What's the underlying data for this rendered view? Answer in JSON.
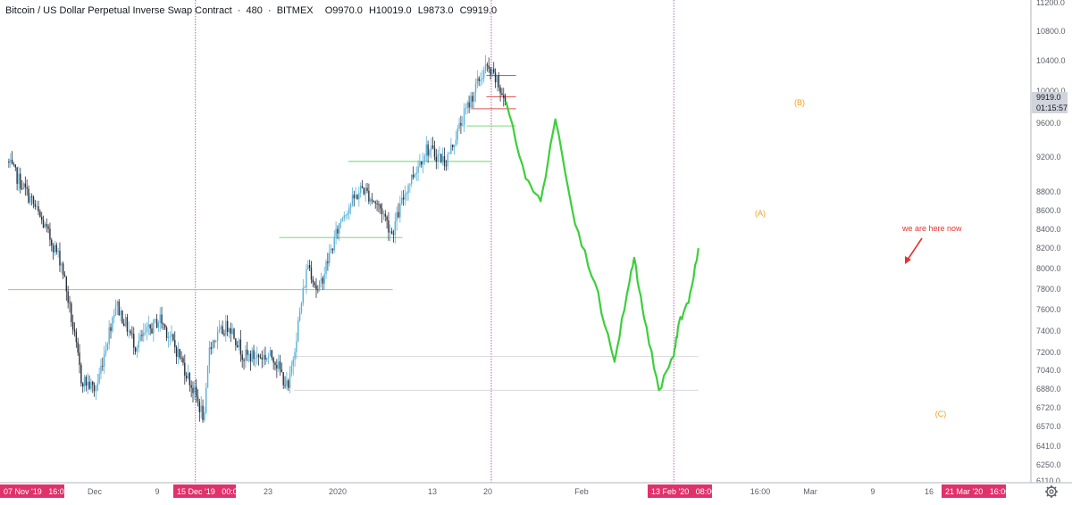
{
  "header": {
    "symbol": "Bitcoin / US Dollar Perpetual Inverse Swap Contract",
    "interval": "480",
    "exchange": "BITMEX",
    "open": "O9970.0",
    "high": "H10019.0",
    "low": "L9873.0",
    "close": "C9919.0"
  },
  "price_axis": {
    "top_partial_label": "11200.0",
    "labels": [
      "10800.0",
      "10400.0",
      "10000.0",
      "9600.0",
      "9200.0",
      "8800.0",
      "8600.0",
      "8400.0",
      "8200.0",
      "8000.0",
      "7800.0",
      "7600.0",
      "7400.0",
      "7200.0",
      "7040.0",
      "6880.0",
      "6720.0",
      "6570.0",
      "6410.0",
      "6250.0",
      "6110.0"
    ],
    "current_price_badge": "9919.0",
    "countdown_badge": "01:15:57"
  },
  "time_axis": {
    "labels": [
      "Dec",
      "9",
      "23",
      "2020",
      "13",
      "20",
      "Feb",
      "16:00",
      "Mar",
      "9",
      "16"
    ],
    "badges": [
      "07 Nov '19   16:00",
      "15 Dec '19   00:00",
      "13 Feb '20   08:00",
      "21 Mar '20   16:00"
    ]
  },
  "annotations": {
    "wave_a": "(A)",
    "wave_b": "(B)",
    "wave_c": "(C)",
    "note": "we are here now"
  },
  "icons": {
    "settings": "gear-icon"
  },
  "colors": {
    "up": "#5ab0d8",
    "down": "#2a2e39",
    "support": "#7bd97b",
    "resistance": "#e05252",
    "projection": "#3ccf3c",
    "marker": "#a0418a",
    "badge": "#e0316b",
    "wave_label": "#f0a020",
    "note": "#e8322e"
  },
  "chart_data": {
    "type": "candlestick",
    "title": "Bitcoin / US Dollar Perpetual Inverse Swap Contract · 480 · BITMEX",
    "timeframe": "480 (8-hour candles)",
    "last_bar": {
      "open": 9970.0,
      "high": 10019.0,
      "low": 9873.0,
      "close": 9919.0
    },
    "price_range": [
      6110,
      11200
    ],
    "y_scale": "log",
    "grid": false,
    "price_path": [
      {
        "date": "2019-11-07",
        "close": 9200
      },
      {
        "date": "2019-11-12",
        "close": 8750
      },
      {
        "date": "2019-11-18",
        "close": 8100
      },
      {
        "date": "2019-11-22",
        "close": 7000
      },
      {
        "date": "2019-11-25",
        "close": 6900
      },
      {
        "date": "2019-11-29",
        "close": 7700
      },
      {
        "date": "2019-12-03",
        "close": 7300
      },
      {
        "date": "2019-12-08",
        "close": 7550
      },
      {
        "date": "2019-12-12",
        "close": 7200
      },
      {
        "date": "2019-12-17",
        "close": 6650
      },
      {
        "date": "2019-12-18",
        "close": 7300
      },
      {
        "date": "2019-12-22",
        "close": 7500
      },
      {
        "date": "2019-12-25",
        "close": 7200
      },
      {
        "date": "2019-12-31",
        "close": 7200
      },
      {
        "date": "2020-01-03",
        "close": 6900
      },
      {
        "date": "2020-01-07",
        "close": 8100
      },
      {
        "date": "2020-01-09",
        "close": 7800
      },
      {
        "date": "2020-01-14",
        "close": 8600
      },
      {
        "date": "2020-01-18",
        "close": 8900
      },
      {
        "date": "2020-01-22",
        "close": 8650
      },
      {
        "date": "2020-01-24",
        "close": 8400
      },
      {
        "date": "2020-01-27",
        "close": 8900
      },
      {
        "date": "2020-01-31",
        "close": 9350
      },
      {
        "date": "2020-02-04",
        "close": 9200
      },
      {
        "date": "2020-02-08",
        "close": 9800
      },
      {
        "date": "2020-02-10",
        "close": 10100
      },
      {
        "date": "2020-02-12",
        "close": 10350
      },
      {
        "date": "2020-02-14",
        "close": 10200
      },
      {
        "date": "2020-02-16",
        "close": 9919
      }
    ],
    "projection_path": [
      {
        "date": "2020-02-16",
        "price": 9919
      },
      {
        "date": "2020-02-20",
        "price": 9000
      },
      {
        "date": "2020-02-23",
        "price": 8750
      },
      {
        "date": "2020-02-26",
        "price": 9700
      },
      {
        "date": "2020-03-01",
        "price": 8500
      },
      {
        "date": "2020-03-05",
        "price": 7900
      },
      {
        "date": "2020-03-09",
        "price": 7150
      },
      {
        "date": "2020-03-12",
        "price": 7900
      },
      {
        "date": "2020-03-13",
        "price": 8150
      },
      {
        "date": "2020-03-15",
        "price": 7550
      },
      {
        "date": "2020-03-18",
        "price": 6900
      },
      {
        "date": "2020-03-21",
        "price": 7200
      },
      {
        "date": "2020-03-22",
        "price": 7500
      },
      {
        "date": "2020-03-24",
        "price": 7700
      },
      {
        "date": "2020-03-26",
        "price": 8250
      }
    ],
    "horizontal_levels": [
      {
        "kind": "support",
        "price": 7830,
        "from": "2019-11-07",
        "to": "2020-01-24"
      },
      {
        "kind": "support",
        "price": 8360,
        "from": "2020-01-01",
        "to": "2020-01-26"
      },
      {
        "kind": "support",
        "price": 9200,
        "from": "2020-01-15",
        "to": "2020-02-13"
      },
      {
        "kind": "support",
        "price": 9620,
        "from": "2020-02-08",
        "to": "2020-02-18"
      },
      {
        "kind": "resistance",
        "price": 10250,
        "from": "2020-02-12",
        "to": "2020-02-18"
      },
      {
        "kind": "resistance",
        "price": 9980,
        "from": "2020-02-12",
        "to": "2020-02-18"
      },
      {
        "kind": "resistance",
        "price": 9830,
        "from": "2020-02-09",
        "to": "2020-02-18"
      },
      {
        "kind": "reference",
        "price": 7200,
        "from": "2020-01-04",
        "to": "2020-03-26"
      },
      {
        "kind": "reference",
        "price": 6900,
        "from": "2020-01-04",
        "to": "2020-03-26"
      }
    ],
    "vertical_markers": [
      "2019-12-15",
      "2020-02-13",
      "2020-03-21"
    ],
    "wave_labels": [
      {
        "label": "(A)",
        "date": "2020-02-23",
        "price": 8620
      },
      {
        "label": "(B)",
        "date": "2020-02-26",
        "price": 9900
      },
      {
        "label": "(C)",
        "date": "2020-03-18",
        "price": 6690
      }
    ],
    "note": {
      "text": "we are here now",
      "date": "2020-03-14",
      "price": 8350
    }
  }
}
